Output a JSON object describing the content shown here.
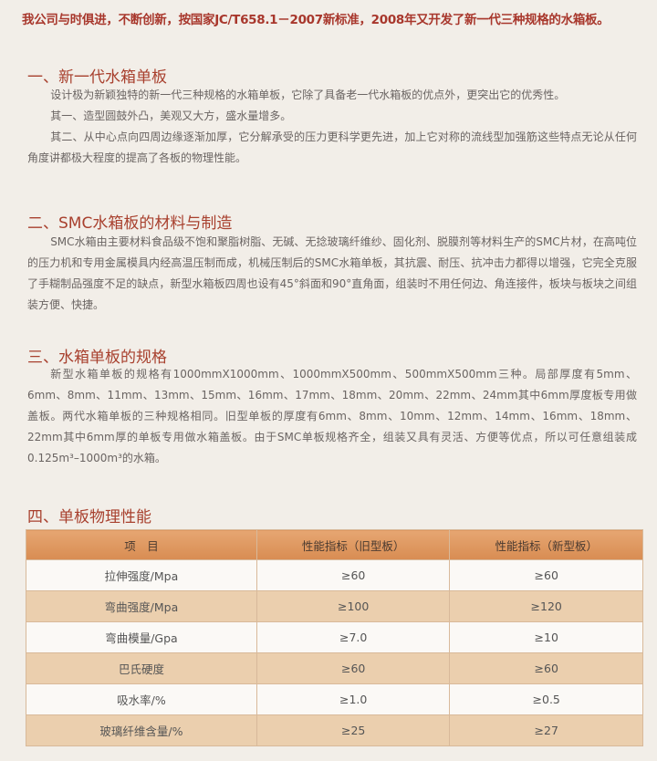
{
  "intro": "我公司与时俱进，不断创新，按国家JC/T658.1－2007新标准，2008年又开发了新一代三种规格的水箱板。",
  "sections": [
    {
      "heading": "一、新一代水箱单板",
      "paragraphs": [
        "设计极为新颖独特的新一代三种规格的水箱单板，它除了具备老一代水箱板的优点外，更突出它的优秀性。",
        "其一、造型圆鼓外凸，美观又大方，盛水量增多。",
        "其二、从中心点向四周边缘逐渐加厚，它分解承受的压力更科学更先进，加上它对称的流线型加强筋这些特点无论从任何角度讲都极大程度的提高了各板的物理性能。"
      ]
    },
    {
      "heading": "二、SMC水箱板的材料与制造",
      "paragraphs": [
        "SMC水箱由主要材料食品级不饱和聚脂树脂、无碱、无捻玻璃纤维纱、固化剂、脱膜剂等材料生产的SMC片材，在高吨位的压力机和专用金属模具内经高温压制而成，机械压制后的SMC水箱单板，其抗震、耐压、抗冲击力都得以增强，它完全克服了手糊制品强度不足的缺点，新型水箱板四周也设有45°斜面和90°直角面，组装时不用任何边、角连接件，板块与板块之间组装方便、快捷。"
      ]
    },
    {
      "heading": "三、水箱单板的规格",
      "paragraphs": [
        "新型水箱单板的规格有1000mmX1000mm、1000mmX500mm、500mmX500mm三种。局部厚度有5mm、6mm、8mm、11mm、13mm、15mm、16mm、17mm、18mm、20mm、22mm、24mm其中6mm厚度板专用做盖板。两代水箱单板的三种规格相同。旧型单板的厚度有6mm、8mm、10mm、12mm、14mm、16mm、18mm、22mm其中6mm厚的单板专用做水箱盖板。由于SMC单板规格齐全，组装又具有灵活、方便等优点，所以可任意组装成0.125m³–1000m³的水箱。"
      ]
    },
    {
      "heading": "四、单板物理性能",
      "paragraphs": []
    }
  ],
  "table": {
    "header": [
      "项　目",
      "性能指标（旧型板）",
      "性能指标（新型板）"
    ],
    "rows": [
      [
        "拉伸强度/Mpa",
        "≥60",
        "≥60"
      ],
      [
        "弯曲强度/Mpa",
        "≥100",
        "≥120"
      ],
      [
        "弯曲模量/Gpa",
        "≥7.0",
        "≥10"
      ],
      [
        "巴氏硬度",
        "≥60",
        "≥60"
      ],
      [
        "吸水率/%",
        "≥1.0",
        "≥0.5"
      ],
      [
        "玻璃纤维含量/%",
        "≥25",
        "≥27"
      ]
    ]
  }
}
